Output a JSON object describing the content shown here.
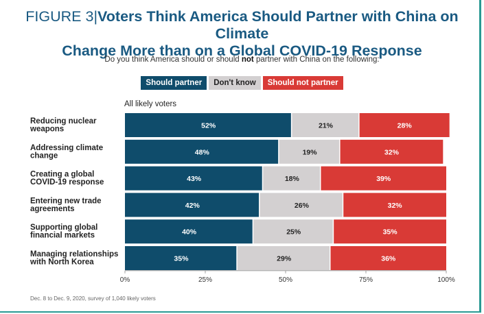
{
  "title": {
    "prefix": "FIGURE 3",
    "line1": "Voters Think America Should Partner with China on Climate",
    "line2": "Change More than on a Global COVID-19 Response"
  },
  "subtitle": {
    "before": "Do you think America should or should ",
    "bold": "not",
    "after": " partner with China on the following:"
  },
  "legend": [
    {
      "label": "Should partner",
      "color": "#0f4c6b"
    },
    {
      "label": "Don't know",
      "color": "#d3d0d1"
    },
    {
      "label": "Should not partner",
      "color": "#d93a36"
    }
  ],
  "footnote": "Dec. 8 to Dec. 9, 2020, survey of 1,040 likely voters",
  "chart_data": {
    "type": "bar",
    "orientation": "horizontal",
    "stacked": true,
    "group_label": "All likely voters",
    "categories": [
      "Reducing nuclear weapons",
      "Addressing climate change",
      "Creating a global COVID-19 response",
      "Entering new trade agreements",
      "Supporting global financial markets",
      "Managing relationships with North Korea"
    ],
    "category_lines": [
      [
        "Reducing nuclear",
        "weapons"
      ],
      [
        "Addressing climate",
        "change"
      ],
      [
        "Creating a global",
        "COVID-19 response"
      ],
      [
        "Entering new trade",
        "agreements"
      ],
      [
        "Supporting global",
        "financial markets"
      ],
      [
        "Managing relationships",
        "with North Korea"
      ]
    ],
    "series": [
      {
        "name": "Should partner",
        "color": "#0f4c6b",
        "values": [
          52,
          48,
          43,
          42,
          40,
          35
        ]
      },
      {
        "name": "Don't know",
        "color": "#d3d0d1",
        "values": [
          21,
          19,
          18,
          26,
          25,
          29
        ]
      },
      {
        "name": "Should not partner",
        "color": "#d93a36",
        "values": [
          28,
          32,
          39,
          32,
          35,
          36
        ]
      }
    ],
    "xlim": [
      0,
      100
    ],
    "xticks": [
      0,
      25,
      50,
      75,
      100
    ],
    "xtick_labels": [
      "0%",
      "25%",
      "50%",
      "75%",
      "100%"
    ],
    "value_suffix": "%",
    "legend_position": "top"
  }
}
